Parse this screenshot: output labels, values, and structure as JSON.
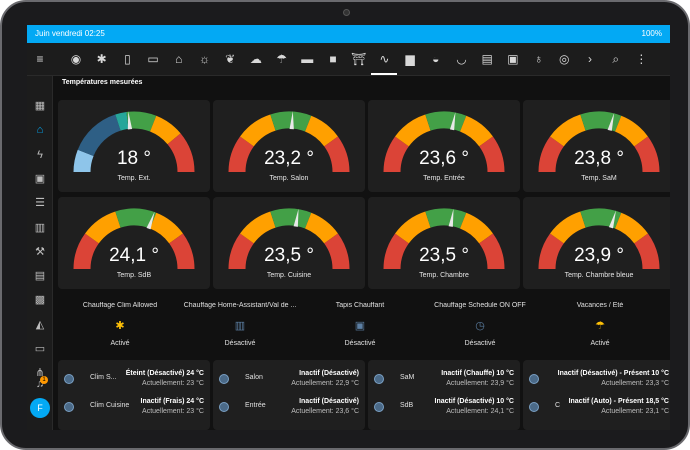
{
  "status": {
    "left": "Juin vendredi 02:25",
    "right": "100%"
  },
  "toolbar": {
    "active_index": 14
  },
  "section_title": "Températures mesurées",
  "gauges": [
    {
      "value": "18 °",
      "numeric": 18,
      "label": "Temp. Ext."
    },
    {
      "value": "23,2 °",
      "numeric": 23.2,
      "label": "Temp. Salon"
    },
    {
      "value": "23,6 °",
      "numeric": 23.6,
      "label": "Temp. Entrée"
    },
    {
      "value": "23,8 °",
      "numeric": 23.8,
      "label": "Temp. SaM"
    },
    {
      "value": "24,1 °",
      "numeric": 24.1,
      "label": "Temp. SdB"
    },
    {
      "value": "23,5 °",
      "numeric": 23.5,
      "label": "Temp. Cuisine"
    },
    {
      "value": "23,5 °",
      "numeric": 23.5,
      "label": "Temp. Chambre"
    },
    {
      "value": "23,9 °",
      "numeric": 23.9,
      "label": "Temp. Chambre bleue"
    }
  ],
  "buttons": [
    {
      "name": "Chauffage Clim Allowed",
      "state": "Activé",
      "icon": "snowflake-icon",
      "color": "#ffc107"
    },
    {
      "name": "Chauffage Home-Assistant/Val de ...",
      "state": "Désactivé",
      "icon": "radiator-icon",
      "color": "#5c7fa3"
    },
    {
      "name": "Tapis Chauffant",
      "state": "Désactivé",
      "icon": "heating-mat-icon",
      "color": "#5c7fa3"
    },
    {
      "name": "Chauffage Schedule ON OFF",
      "state": "Désactivé",
      "icon": "clock-icon",
      "color": "#5c7fa3"
    },
    {
      "name": "Vacances / Été",
      "state": "Activé",
      "icon": "beach-icon",
      "color": "#ffc107"
    }
  ],
  "thermostats": [
    {
      "rows": [
        {
          "name": "Clim S...",
          "state": "Éteint (Désactivé) 24 °C",
          "current": "Actuellement: 23 °C"
        },
        {
          "name": "Clim Cuisine",
          "state": "Inactif (Frais) 24 °C",
          "current": "Actuellement: 23 °C"
        }
      ]
    },
    {
      "rows": [
        {
          "name": "Salon",
          "state": "Inactif (Désactivé)",
          "current": "Actuellement: 22,9 °C"
        },
        {
          "name": "Entrée",
          "state": "Inactif (Désactivé)",
          "current": "Actuellement: 23,6 °C"
        }
      ]
    },
    {
      "rows": [
        {
          "name": "SaM",
          "state": "Inactif (Chauffe) 10 °C",
          "current": "Actuellement: 23,9 °C"
        },
        {
          "name": "SdB",
          "state": "Inactif (Désactivé) 10 °C",
          "current": "Actuellement: 24,1 °C"
        }
      ]
    },
    {
      "rows": [
        {
          "name": "",
          "state": "Inactif (Désactivé) - Présent 10 °C",
          "current": "Actuellement: 23,3 °C"
        },
        {
          "name": "C",
          "state": "Inactif (Auto) - Présent 18,5 °C",
          "current": "Actuellement: 23,1 °C"
        }
      ]
    }
  ],
  "avatar_letter": "F",
  "notification_count": "1",
  "colors": {
    "accent": "#03a9f4",
    "green": "#43a047",
    "yellow": "#ffa000",
    "red": "#db4437",
    "blue_dark": "#2e5f85",
    "blue_light": "#8ec5ea",
    "teal": "#26a69a"
  }
}
